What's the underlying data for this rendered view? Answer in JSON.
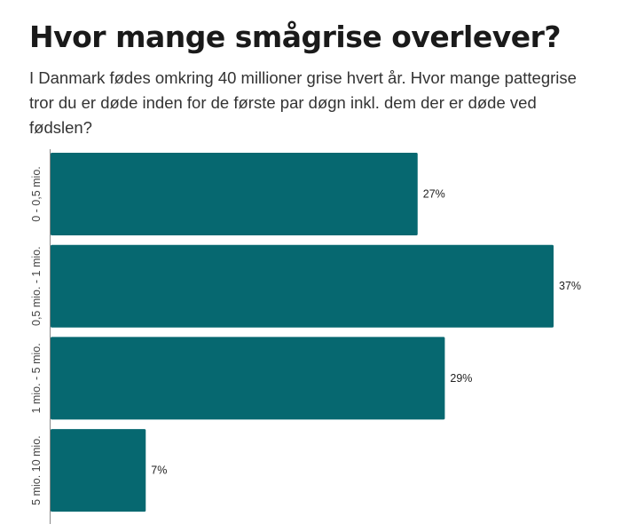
{
  "chart_data": {
    "type": "bar",
    "orientation": "horizontal",
    "title": "Hvor mange smågrise overlever?",
    "subtitle": "I Danmark fødes omkring 40 millioner grise hvert år. Hvor mange pattegrise tror du er døde inden for de første par døgn inkl. dem der er døde ved fødslen?",
    "categories": [
      "0 - 0,5 mio.",
      "0,5 mio. - 1 mio.",
      "1 mio. - 5 mio.",
      "5 mio. 10 mio."
    ],
    "values": [
      27,
      37,
      29,
      7
    ],
    "value_labels": [
      "27%",
      "37%",
      "29%",
      "7%"
    ],
    "unit": "%",
    "xlim": [
      0,
      37
    ],
    "grid": false,
    "bar_color": "#066870"
  }
}
